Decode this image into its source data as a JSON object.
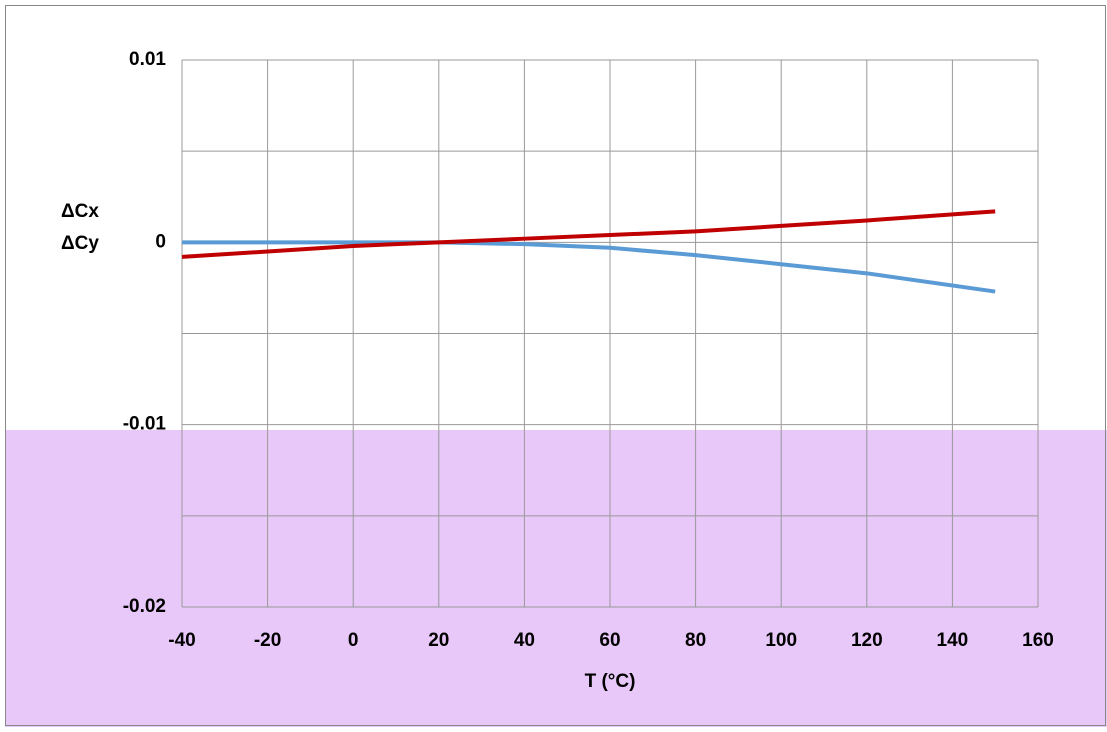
{
  "chart_data": {
    "type": "line",
    "ylabel": [
      "ΔCx",
      "ΔCy"
    ],
    "xlabel": "T (°C)",
    "x": [
      -40,
      -20,
      0,
      20,
      40,
      60,
      80,
      100,
      120,
      150
    ],
    "series": [
      {
        "color": "#5b9bd5",
        "values": [
          0,
          0,
          0,
          0,
          -0.0001,
          -0.0003,
          -0.0007,
          -0.0012,
          -0.0017,
          -0.0027
        ]
      },
      {
        "color": "#c00000",
        "values": [
          -0.0008,
          -0.0005,
          -0.0002,
          0,
          0.0002,
          0.0004,
          0.0006,
          0.0009,
          0.0012,
          0.0017
        ]
      }
    ],
    "xlim": [
      -40,
      160
    ],
    "xticks": [
      -40,
      -20,
      0,
      20,
      40,
      60,
      80,
      100,
      120,
      140,
      160
    ],
    "ylim": [
      -0.02,
      0.01
    ],
    "yticks": [
      -0.02,
      -0.01,
      0,
      0.01
    ],
    "y_minor_ticks": [
      -0.015,
      -0.005,
      0.005
    ],
    "grid": true
  }
}
